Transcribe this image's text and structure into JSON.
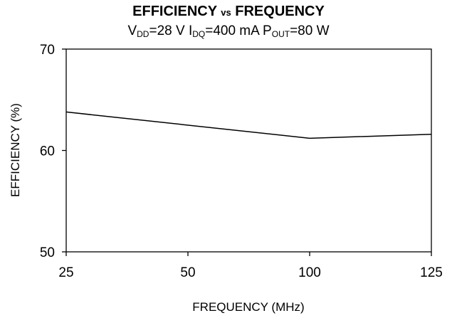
{
  "chart_data": {
    "type": "line",
    "title_main_1": "EFFICIENCY ",
    "title_vs": "vs",
    "title_main_2": " FREQUENCY",
    "subtitle_parts": {
      "v": "V",
      "v_sub": "DD",
      "v_val": "=28 V ",
      "i": "I",
      "i_sub": "DQ",
      "i_val": "=400 mA ",
      "p": "P",
      "p_sub": "OUT",
      "p_val": "=80 W"
    },
    "xlabel": "FREQUENCY (MHz)",
    "ylabel": "EFFICIENCY (%)",
    "x_ticks": [
      "25",
      "50",
      "100",
      "125"
    ],
    "y_ticks": [
      "50",
      "60",
      "70"
    ],
    "x_axis_positions": [
      0,
      1,
      2,
      3
    ],
    "ylim": [
      50,
      70
    ],
    "grid": false,
    "series": [
      {
        "x": [
          25,
          100,
          125
        ],
        "values": [
          63.8,
          61.2,
          61.6
        ]
      }
    ]
  }
}
